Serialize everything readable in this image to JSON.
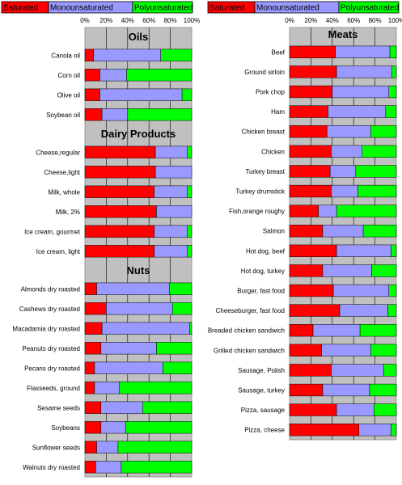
{
  "chart_data": {
    "type": "bar",
    "stacked": "percent",
    "orientation": "horizontal",
    "legend": {
      "placement": "top",
      "entries": [
        {
          "name": "Saturated",
          "color": "#ff0000"
        },
        {
          "name": "Monounsaturated",
          "color": "#9999ff"
        },
        {
          "name": "Polyunsaturated",
          "color": "#00ff00"
        }
      ]
    },
    "xlim": [
      0,
      100
    ],
    "ticks": [
      "0%",
      "20%",
      "40%",
      "60%",
      "80%",
      "100%"
    ],
    "grid": true,
    "panels": [
      {
        "sections": [
          {
            "title": "Oils",
            "items": [
              {
                "label": "Canola oil",
                "values": [
                  8,
                  63,
                  29
                ]
              },
              {
                "label": "Corn oil",
                "values": [
                  14,
                  25,
                  61
                ]
              },
              {
                "label": "Olive oil",
                "values": [
                  14,
                  77,
                  9
                ]
              },
              {
                "label": "Soybean oil",
                "values": [
                  16,
                  24,
                  60
                ]
              }
            ]
          },
          {
            "title": "Dairy Products",
            "items": [
              {
                "label": "Cheese,regular",
                "values": [
                  66,
                  30,
                  4
                ]
              },
              {
                "label": "Cheese,light",
                "values": [
                  66,
                  34,
                  0
                ]
              },
              {
                "label": "Milk, whole",
                "values": [
                  65,
                  31,
                  4
                ]
              },
              {
                "label": "Milk, 2%",
                "values": [
                  67,
                  33,
                  0
                ]
              },
              {
                "label": "Ice cream, gourmet",
                "values": [
                  65,
                  31,
                  4
                ]
              },
              {
                "label": "Ice cream, light",
                "values": [
                  65,
                  31,
                  4
                ]
              }
            ]
          },
          {
            "title": "Nuts",
            "items": [
              {
                "label": "Almonds dry roasted",
                "values": [
                  11,
                  68,
                  21
                ]
              },
              {
                "label": "Cashews dry roasted",
                "values": [
                  20,
                  62,
                  18
                ]
              },
              {
                "label": "Macadamia dry roasted",
                "values": [
                  16,
                  82,
                  2
                ]
              },
              {
                "label": "Peanuts dry roasted",
                "values": [
                  15,
                  52,
                  33
                ]
              },
              {
                "label": "Pecans dry roasted",
                "values": [
                  9,
                  64,
                  27
                ]
              },
              {
                "label": "Flaxseeds, ground",
                "values": [
                  9,
                  23,
                  68
                ]
              },
              {
                "label": "Sesame seeds",
                "values": [
                  15,
                  39,
                  46
                ]
              },
              {
                "label": "Soybeans",
                "values": [
                  15,
                  23,
                  62
                ]
              },
              {
                "label": "Sunflower seeds",
                "values": [
                  11,
                  20,
                  69
                ]
              },
              {
                "label": "Walnuts dry roasted",
                "values": [
                  10,
                  24,
                  66
                ]
              }
            ]
          }
        ]
      },
      {
        "sections": [
          {
            "title": "Meats",
            "items": [
              {
                "label": "Beef",
                "values": [
                  43,
                  51,
                  6
                ]
              },
              {
                "label": "Ground sirloin",
                "values": [
                  44,
                  52,
                  4
                ]
              },
              {
                "label": "Pork chop",
                "values": [
                  40,
                  53,
                  7
                ]
              },
              {
                "label": "Ham",
                "values": [
                  36,
                  54,
                  10
                ]
              },
              {
                "label": "Chicken breast",
                "values": [
                  35,
                  41,
                  24
                ]
              },
              {
                "label": "Chicken",
                "values": [
                  39,
                  29,
                  32
                ]
              },
              {
                "label": "Turkey breast",
                "values": [
                  38,
                  24,
                  38
                ]
              },
              {
                "label": "Turkey drumstick",
                "values": [
                  39,
                  25,
                  36
                ]
              },
              {
                "label": "Fish,orange roughy",
                "values": [
                  27,
                  17,
                  56
                ]
              },
              {
                "label": "Salmon",
                "values": [
                  31,
                  38,
                  31
                ]
              },
              {
                "label": "Hot dog, beef",
                "values": [
                  44,
                  51,
                  5
                ]
              },
              {
                "label": "Hot dog, turkey",
                "values": [
                  31,
                  46,
                  23
                ]
              },
              {
                "label": "Burger, fast food",
                "values": [
                  41,
                  52,
                  7
                ]
              },
              {
                "label": "Cheeseburger, fast food",
                "values": [
                  47,
                  45,
                  8
                ]
              },
              {
                "label": "Breaded chicken sandwich",
                "values": [
                  22,
                  44,
                  34
                ]
              },
              {
                "label": "Grilled chicken sandwich",
                "values": [
                  30,
                  46,
                  24
                ]
              },
              {
                "label": "Sausage, Polish",
                "values": [
                  39,
                  49,
                  12
                ]
              },
              {
                "label": "Sausage, turkey",
                "values": [
                  31,
                  44,
                  25
                ]
              },
              {
                "label": "Pizza, sausage",
                "values": [
                  44,
                  35,
                  21
                ]
              },
              {
                "label": "Pizza, cheese",
                "values": [
                  65,
                  30,
                  5
                ]
              }
            ]
          }
        ]
      }
    ]
  }
}
